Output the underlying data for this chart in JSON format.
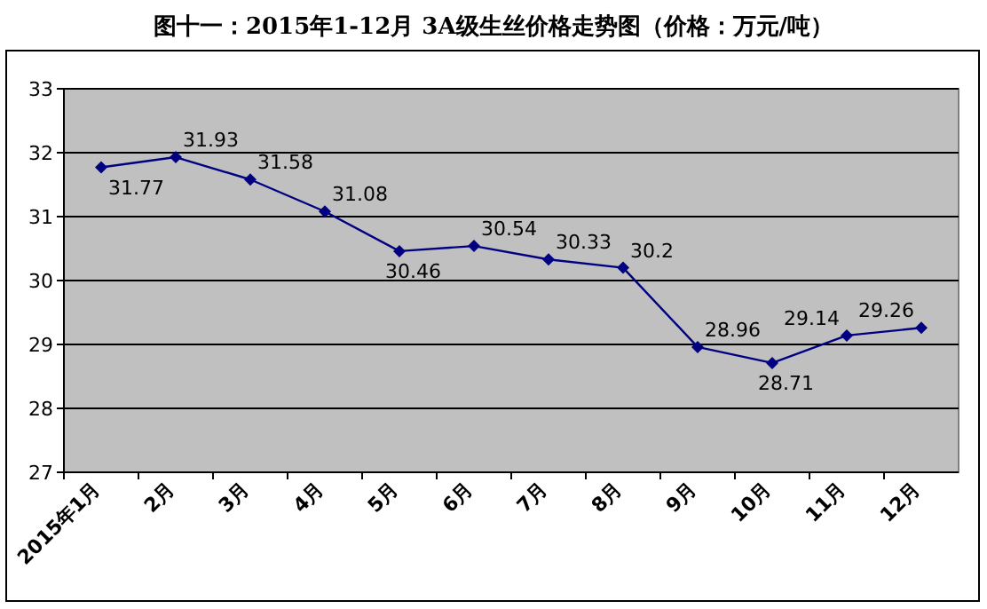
{
  "chart_data": {
    "type": "line",
    "title": "图十一：2015年1-12月 3A级生丝价格走势图（价格：万元/吨）",
    "categories": [
      "2015年1月",
      "2月",
      "3月",
      "4月",
      "5月",
      "6月",
      "7月",
      "8月",
      "9月",
      "10月",
      "11月",
      "12月"
    ],
    "series": [
      {
        "color": "#000080",
        "values": [
          31.77,
          31.93,
          31.58,
          31.08,
          30.46,
          30.54,
          30.33,
          30.2,
          28.96,
          28.71,
          29.14,
          29.26
        ]
      }
    ],
    "ylim": [
      27,
      33
    ],
    "yticks": [
      27,
      28,
      29,
      30,
      31,
      32,
      33
    ],
    "grid": "y",
    "marker": "diamond",
    "line_style": "solid",
    "data_labels": true
  }
}
